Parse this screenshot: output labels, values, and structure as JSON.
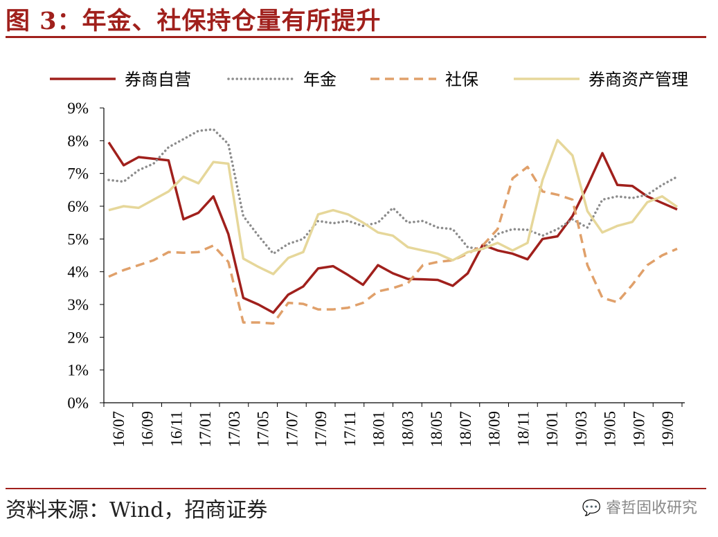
{
  "header": {
    "title": "图 3：年金、社保持仓量有所提升"
  },
  "footer": {
    "source": "资料来源：Wind，招商证券",
    "watermark": "睿哲固收研究"
  },
  "chart_data": {
    "type": "line",
    "title": "年金、社保持仓量有所提升",
    "xlabel": "",
    "ylabel": "",
    "ylim": [
      0,
      9
    ],
    "yticks": [
      "0%",
      "1%",
      "2%",
      "3%",
      "4%",
      "5%",
      "6%",
      "7%",
      "8%",
      "9%"
    ],
    "xticks": [
      "16/07",
      "16/09",
      "16/11",
      "17/01",
      "17/03",
      "17/05",
      "17/07",
      "17/09",
      "17/11",
      "18/01",
      "18/03",
      "18/05",
      "18/07",
      "18/09",
      "18/11",
      "19/01",
      "19/03",
      "19/05",
      "19/07",
      "19/09"
    ],
    "legend_position": "top",
    "series": [
      {
        "name": "券商自营",
        "color": "#a0201c",
        "style": "solid",
        "values": [
          7.95,
          7.25,
          7.5,
          7.45,
          7.4,
          5.6,
          5.8,
          6.3,
          5.15,
          3.2,
          3.0,
          2.75,
          3.3,
          3.55,
          4.1,
          4.17,
          3.9,
          3.6,
          4.2,
          3.95,
          3.78,
          3.77,
          3.75,
          3.57,
          3.95,
          4.82,
          4.65,
          4.55,
          4.38,
          5.0,
          5.08,
          5.7,
          6.62,
          7.62,
          6.65,
          6.62,
          6.3,
          6.1,
          5.9
        ]
      },
      {
        "name": "年金",
        "color": "#8c8c8c",
        "style": "dotted",
        "values": [
          6.8,
          6.75,
          7.1,
          7.3,
          7.8,
          8.05,
          8.3,
          8.35,
          7.9,
          5.7,
          5.1,
          4.55,
          4.85,
          5.0,
          5.55,
          5.48,
          5.55,
          5.4,
          5.5,
          5.95,
          5.5,
          5.55,
          5.35,
          5.3,
          4.75,
          4.68,
          5.15,
          5.3,
          5.28,
          5.1,
          5.3,
          5.6,
          5.35,
          6.2,
          6.3,
          6.25,
          6.35,
          6.65,
          6.9
        ]
      },
      {
        "name": "社保",
        "color": "#e0a06a",
        "style": "dashed",
        "values": [
          3.85,
          4.05,
          4.2,
          4.35,
          4.6,
          4.58,
          4.6,
          4.8,
          4.3,
          2.45,
          2.45,
          2.42,
          3.05,
          3.02,
          2.85,
          2.85,
          2.9,
          3.05,
          3.4,
          3.5,
          3.65,
          4.2,
          4.3,
          4.35,
          4.55,
          4.8,
          5.3,
          6.85,
          7.2,
          6.45,
          6.35,
          6.2,
          4.2,
          3.2,
          3.07,
          3.6,
          4.2,
          4.5,
          4.7
        ]
      },
      {
        "name": "券商资产管理",
        "color": "#e6d79a",
        "style": "solid",
        "values": [
          5.88,
          6.0,
          5.95,
          6.2,
          6.45,
          6.9,
          6.7,
          7.35,
          7.3,
          4.4,
          4.15,
          3.93,
          4.42,
          4.6,
          5.75,
          5.88,
          5.75,
          5.5,
          5.2,
          5.1,
          4.75,
          4.65,
          4.55,
          4.35,
          4.6,
          4.7,
          4.88,
          4.65,
          4.88,
          6.8,
          8.02,
          7.55,
          5.85,
          5.2,
          5.4,
          5.52,
          6.12,
          6.3,
          5.98
        ]
      }
    ]
  }
}
